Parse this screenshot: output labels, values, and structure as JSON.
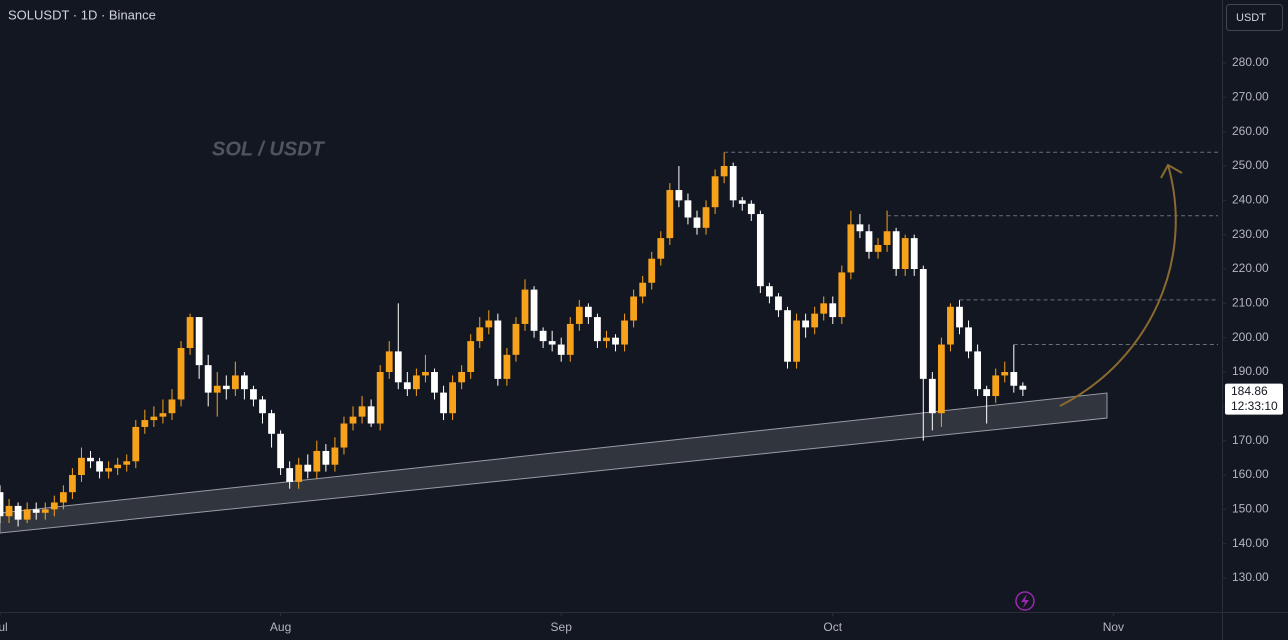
{
  "chart_data": {
    "type": "candlestick",
    "title": "SOLUSDT · 1D · Binance",
    "watermark": "SOL / USDT",
    "currency_button": "USDT",
    "countdown": "12:33:10",
    "up_color": "#f7a21b",
    "down_color": "#ffffff",
    "grid": false,
    "xlim": [
      0,
      135
    ],
    "xticks": [
      {
        "value": 0,
        "label": "Jul"
      },
      {
        "value": 31,
        "label": "Aug"
      },
      {
        "value": 62,
        "label": "Sep"
      },
      {
        "value": 92,
        "label": "Oct"
      },
      {
        "value": 123,
        "label": "Nov"
      }
    ],
    "ylim": [
      120.1,
      298.35
    ],
    "yticks": [
      {
        "value": 130,
        "label": "130.00"
      },
      {
        "value": 140,
        "label": "140.00"
      },
      {
        "value": 150,
        "label": "150.00"
      },
      {
        "value": 160,
        "label": "160.00"
      },
      {
        "value": 170,
        "label": "170.00"
      },
      {
        "value": 180,
        "label": "180.00"
      },
      {
        "value": 190,
        "label": "190.00"
      },
      {
        "value": 200,
        "label": "200.00"
      },
      {
        "value": 210,
        "label": "210.00"
      },
      {
        "value": 220,
        "label": "220.00"
      },
      {
        "value": 230,
        "label": "230.00"
      },
      {
        "value": 240,
        "label": "240.00"
      },
      {
        "value": 250,
        "label": "250.00"
      },
      {
        "value": 260,
        "label": "260.00"
      },
      {
        "value": 270,
        "label": "270.00"
      },
      {
        "value": 280,
        "label": "280.00"
      }
    ],
    "levels": [
      254,
      235.5,
      211,
      198
    ],
    "x": [
      0,
      1,
      2,
      3,
      4,
      5,
      6,
      7,
      8,
      9,
      10,
      11,
      12,
      13,
      14,
      15,
      16,
      17,
      18,
      19,
      20,
      21,
      22,
      23,
      24,
      25,
      26,
      27,
      28,
      29,
      30,
      31,
      32,
      33,
      34,
      35,
      36,
      37,
      38,
      39,
      40,
      41,
      42,
      43,
      44,
      45,
      46,
      47,
      48,
      49,
      50,
      51,
      52,
      53,
      54,
      55,
      56,
      57,
      58,
      59,
      60,
      61,
      62,
      63,
      64,
      65,
      66,
      67,
      68,
      69,
      70,
      71,
      72,
      73,
      74,
      75,
      76,
      77,
      78,
      79,
      80,
      81,
      82,
      83,
      84,
      85,
      86,
      87,
      88,
      89,
      90,
      91,
      92,
      93,
      94,
      95,
      96,
      97,
      98,
      99,
      100,
      101,
      102,
      103,
      104,
      105,
      106,
      107,
      108,
      109,
      110,
      111,
      112,
      113
    ],
    "ohlc": [
      [
        155,
        157,
        146,
        148
      ],
      [
        148,
        153,
        146,
        151
      ],
      [
        151,
        152,
        145,
        147
      ],
      [
        147,
        152,
        146,
        150
      ],
      [
        150,
        152,
        147,
        149
      ],
      [
        149,
        152,
        147,
        150
      ],
      [
        150,
        154,
        148,
        152
      ],
      [
        152,
        157,
        150,
        155
      ],
      [
        155,
        162,
        153,
        160
      ],
      [
        160,
        168,
        158,
        165
      ],
      [
        165,
        167,
        162,
        164
      ],
      [
        164,
        165,
        159,
        161
      ],
      [
        161,
        164,
        159,
        162
      ],
      [
        162,
        165,
        160,
        163
      ],
      [
        163,
        166,
        161,
        164
      ],
      [
        164,
        176,
        162,
        174
      ],
      [
        174,
        179,
        172,
        176
      ],
      [
        176,
        180,
        174,
        177
      ],
      [
        177,
        182,
        175,
        178
      ],
      [
        178,
        185,
        176,
        182
      ],
      [
        182,
        199,
        180,
        197
      ],
      [
        197,
        207,
        195,
        206
      ],
      [
        206,
        206,
        188,
        192
      ],
      [
        192,
        195,
        180,
        184
      ],
      [
        184,
        190,
        177,
        186
      ],
      [
        186,
        189,
        182,
        185
      ],
      [
        185,
        193,
        183,
        189
      ],
      [
        189,
        190,
        182,
        185
      ],
      [
        185,
        186,
        180,
        182
      ],
      [
        182,
        183,
        175,
        178
      ],
      [
        178,
        179,
        168,
        172
      ],
      [
        172,
        173,
        160,
        162
      ],
      [
        162,
        164,
        156,
        158
      ],
      [
        158,
        165,
        156,
        163
      ],
      [
        163,
        166,
        159,
        161
      ],
      [
        161,
        170,
        159,
        167
      ],
      [
        167,
        169,
        161,
        163
      ],
      [
        163,
        171,
        161,
        168
      ],
      [
        168,
        177,
        166,
        175
      ],
      [
        175,
        180,
        173,
        177
      ],
      [
        177,
        183,
        175,
        180
      ],
      [
        180,
        182,
        174,
        175
      ],
      [
        175,
        192,
        173,
        190
      ],
      [
        190,
        199,
        188,
        196
      ],
      [
        196,
        210,
        185,
        187
      ],
      [
        187,
        190,
        183,
        185
      ],
      [
        185,
        191,
        183,
        189
      ],
      [
        189,
        195,
        187,
        190
      ],
      [
        190,
        191,
        182,
        184
      ],
      [
        184,
        186,
        176,
        178
      ],
      [
        178,
        189,
        176,
        187
      ],
      [
        187,
        192,
        185,
        190
      ],
      [
        190,
        201,
        188,
        199
      ],
      [
        199,
        206,
        197,
        203
      ],
      [
        203,
        208,
        201,
        205
      ],
      [
        205,
        207,
        186,
        188
      ],
      [
        188,
        197,
        186,
        195
      ],
      [
        195,
        206,
        193,
        204
      ],
      [
        204,
        217,
        202,
        214
      ],
      [
        214,
        215,
        200,
        202
      ],
      [
        202,
        203,
        197,
        199
      ],
      [
        199,
        202,
        196,
        198
      ],
      [
        198,
        200,
        193,
        195
      ],
      [
        195,
        206,
        193,
        204
      ],
      [
        204,
        211,
        202,
        209
      ],
      [
        209,
        210,
        204,
        206
      ],
      [
        206,
        207,
        197,
        199
      ],
      [
        199,
        202,
        197,
        200
      ],
      [
        200,
        201,
        196,
        198
      ],
      [
        198,
        207,
        196,
        205
      ],
      [
        205,
        214,
        203,
        212
      ],
      [
        212,
        218,
        210,
        216
      ],
      [
        216,
        225,
        214,
        223
      ],
      [
        223,
        231,
        221,
        229
      ],
      [
        229,
        245,
        227,
        243
      ],
      [
        243,
        250,
        238,
        240
      ],
      [
        240,
        242,
        233,
        235
      ],
      [
        235,
        237,
        230,
        232
      ],
      [
        232,
        240,
        230,
        238
      ],
      [
        238,
        249,
        236,
        247
      ],
      [
        247,
        254,
        245,
        250
      ],
      [
        250,
        251,
        238,
        240
      ],
      [
        240,
        241,
        237,
        239
      ],
      [
        239,
        240,
        234,
        236
      ],
      [
        236,
        237,
        213,
        215
      ],
      [
        215,
        216,
        210,
        212
      ],
      [
        212,
        213,
        206,
        208
      ],
      [
        208,
        209,
        191,
        193
      ],
      [
        193,
        207,
        191,
        205
      ],
      [
        205,
        207,
        200,
        203
      ],
      [
        203,
        209,
        201,
        207
      ],
      [
        207,
        212,
        205,
        210
      ],
      [
        210,
        212,
        204,
        206
      ],
      [
        206,
        221,
        204,
        219
      ],
      [
        219,
        237,
        217,
        233
      ],
      [
        233,
        236,
        229,
        231
      ],
      [
        231,
        233,
        223,
        225
      ],
      [
        225,
        229,
        223,
        227
      ],
      [
        227,
        237,
        225,
        231
      ],
      [
        231,
        232,
        218,
        220
      ],
      [
        220,
        230,
        218,
        229
      ],
      [
        229,
        230,
        218,
        220
      ],
      [
        220,
        221,
        170,
        188
      ],
      [
        188,
        190,
        173,
        178
      ],
      [
        178,
        200,
        174,
        198
      ],
      [
        198,
        210,
        196,
        209
      ],
      [
        209,
        211,
        201,
        203
      ],
      [
        203,
        205,
        194,
        196
      ],
      [
        196,
        198,
        183,
        185
      ],
      [
        185,
        186,
        175,
        183
      ],
      [
        183,
        191,
        181,
        189
      ],
      [
        189,
        193,
        187,
        190
      ],
      [
        190,
        198,
        184,
        186
      ],
      [
        186,
        187,
        183,
        184.86
      ]
    ]
  }
}
